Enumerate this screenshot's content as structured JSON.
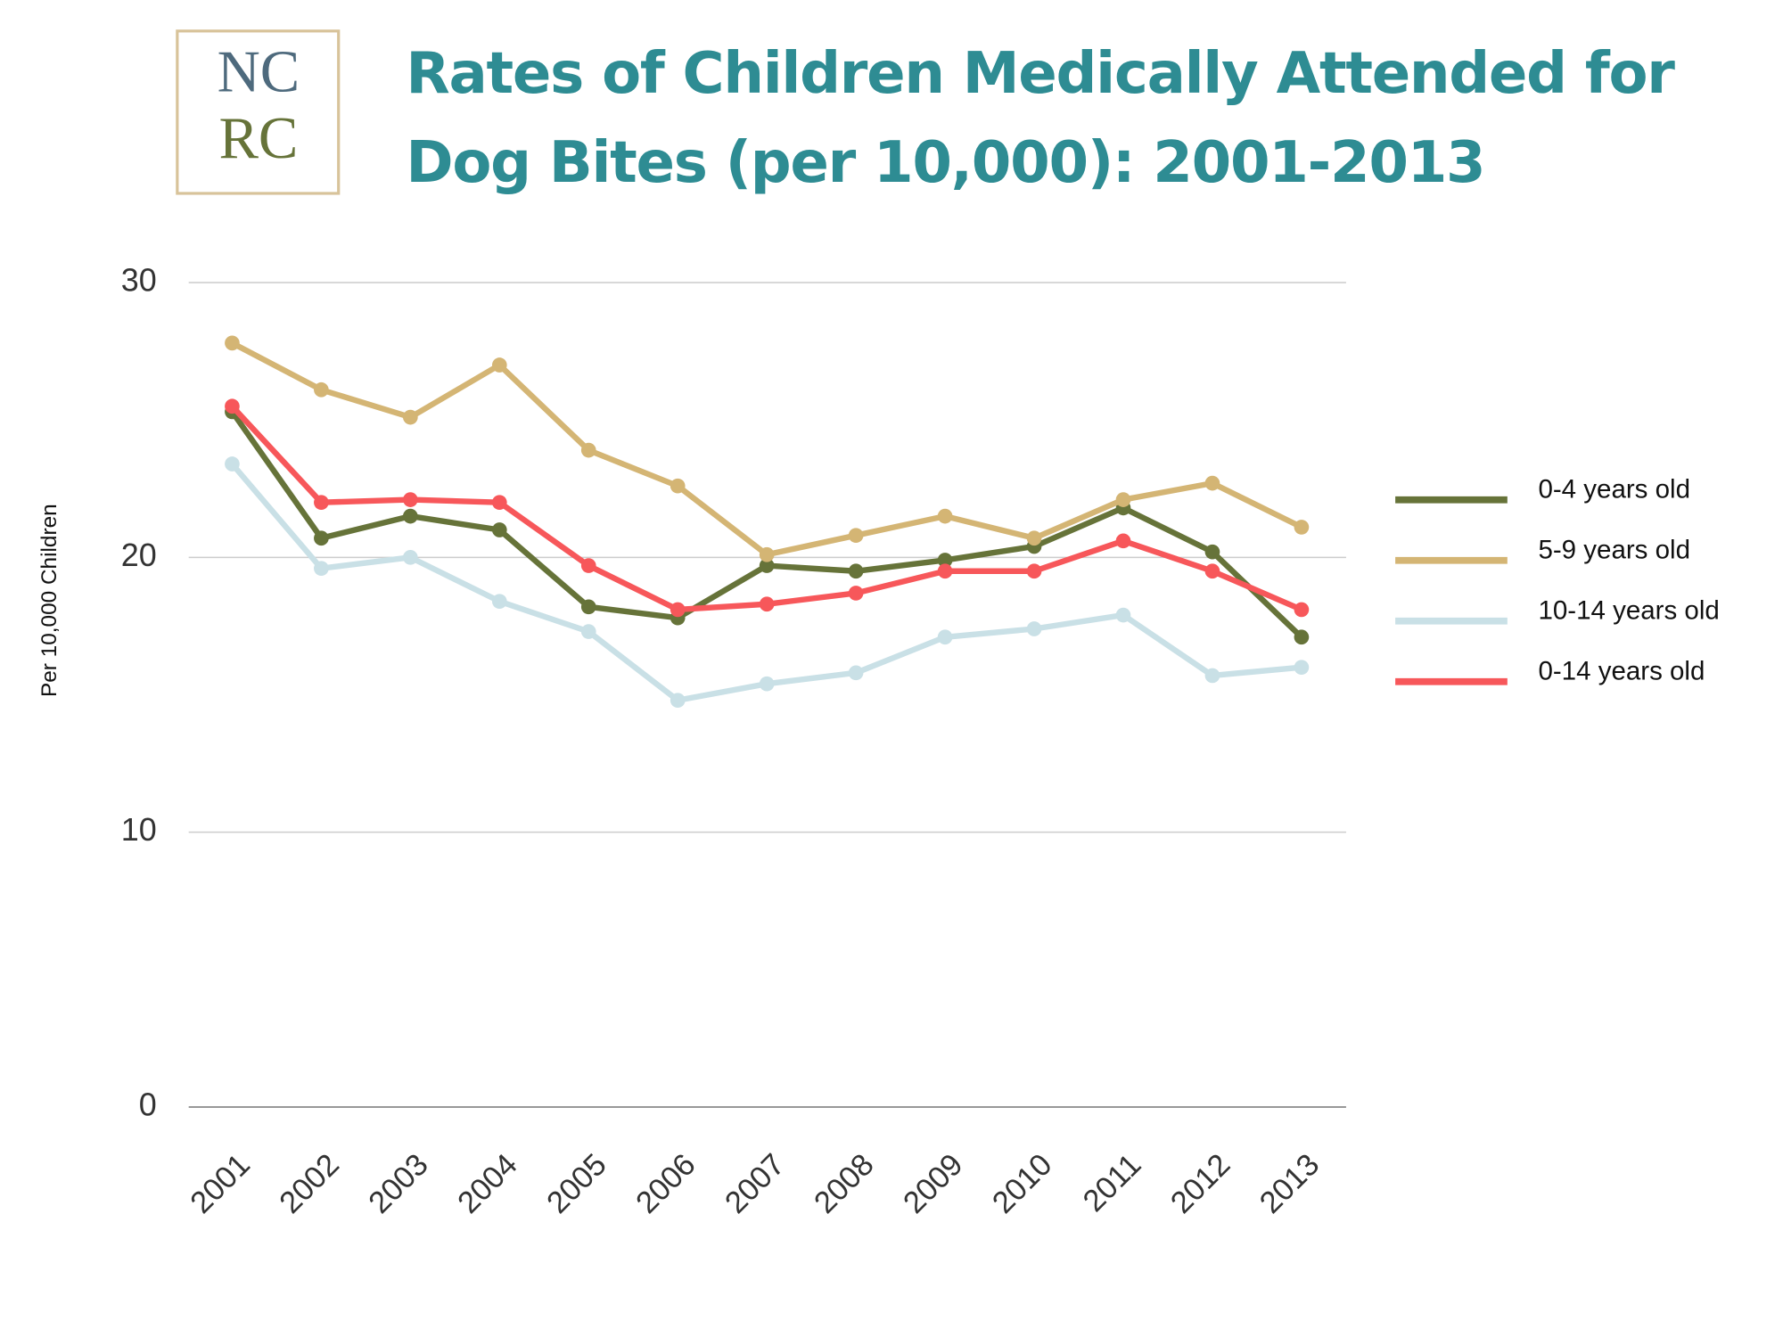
{
  "logo": {
    "line1": "NC",
    "line2": "RC"
  },
  "chart_data": {
    "type": "line",
    "title": "Rates of Children Medically Attended for Dog Bites (per 10,000): 2001-2013",
    "y_label": "Per 10,000 Children",
    "categories": [
      "2001",
      "2002",
      "2003",
      "2004",
      "2005",
      "2006",
      "2007",
      "2008",
      "2009",
      "2010",
      "2011",
      "2012",
      "2013"
    ],
    "series": [
      {
        "name": "0-4 years old",
        "color": "#667339",
        "values": [
          25.3,
          20.7,
          21.5,
          21.0,
          18.2,
          17.8,
          19.7,
          19.5,
          19.9,
          20.4,
          21.8,
          20.2,
          17.1
        ]
      },
      {
        "name": "5-9 years old",
        "color": "#d4b574",
        "values": [
          27.8,
          26.1,
          25.1,
          27.0,
          23.9,
          22.6,
          20.1,
          20.8,
          21.5,
          20.7,
          22.1,
          22.7,
          21.1
        ]
      },
      {
        "name": "10-14 years old",
        "color": "#c9e0e6",
        "values": [
          23.4,
          19.6,
          20.0,
          18.4,
          17.3,
          14.8,
          15.4,
          15.8,
          17.1,
          17.4,
          17.9,
          15.7,
          16.0
        ]
      },
      {
        "name": "0-14 years old",
        "color": "#f7575a",
        "values": [
          25.5,
          22.0,
          22.1,
          22.0,
          19.7,
          18.1,
          18.3,
          18.7,
          19.5,
          19.5,
          20.6,
          19.5,
          18.1
        ]
      }
    ],
    "ylim": [
      0,
      30
    ],
    "yticks": [
      0,
      10,
      20,
      30
    ],
    "grid": true,
    "legend": "right"
  }
}
